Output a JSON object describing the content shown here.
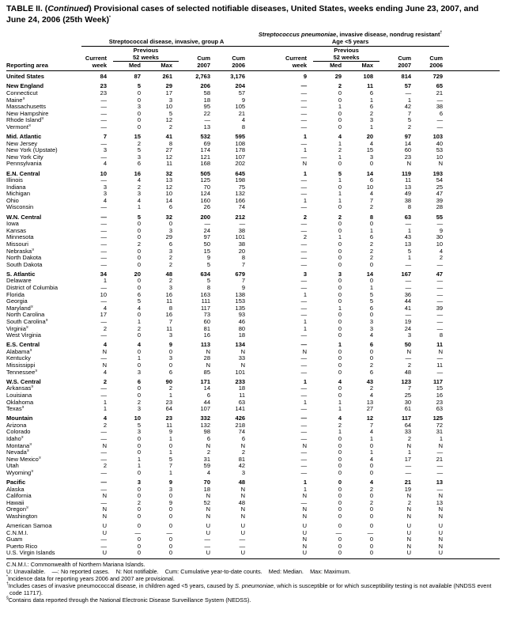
{
  "title": {
    "p1": "TABLE II. (",
    "p2": "Continued",
    "p3": ") Provisional cases of selected notifiable diseases, United States, weeks ending June 23, 2007, and June 24, 2006 (25th Week)",
    "star": "*"
  },
  "group_a": {
    "title": "Streptococcal disease, invasive, group A"
  },
  "group_b": {
    "title_italic": "Streptococcus pneumoniae",
    "title_rest": ", invasive disease, nondrug resistant",
    "dagger": "†",
    "subtitle": "Age <5 years"
  },
  "columns": {
    "reporting_area": "Reporting area",
    "current": "Current",
    "week": "week",
    "previous": "Previous",
    "weeks52": "52 weeks",
    "med": "Med",
    "max": "Max",
    "cum": "Cum",
    "y2007": "2007",
    "y2006": "2006"
  },
  "rows": [
    {
      "area": "United States",
      "bold": true,
      "v": [
        "84",
        "87",
        "261",
        "2,763",
        "3,176",
        "9",
        "29",
        "108",
        "814",
        "729"
      ]
    },
    {
      "area": "New England",
      "bold": true,
      "sect": true,
      "v": [
        "23",
        "5",
        "29",
        "206",
        "204",
        "—",
        "2",
        "11",
        "57",
        "65"
      ]
    },
    {
      "area": "Connecticut",
      "v": [
        "23",
        "0",
        "17",
        "58",
        "57",
        "—",
        "0",
        "6",
        "—",
        "21"
      ]
    },
    {
      "area": "Maine",
      "sup": "§",
      "v": [
        "—",
        "0",
        "3",
        "18",
        "9",
        "—",
        "0",
        "1",
        "1",
        "—"
      ]
    },
    {
      "area": "Massachusetts",
      "v": [
        "—",
        "3",
        "10",
        "95",
        "105",
        "—",
        "1",
        "6",
        "42",
        "38"
      ]
    },
    {
      "area": "New Hampshire",
      "v": [
        "—",
        "0",
        "5",
        "22",
        "21",
        "—",
        "0",
        "2",
        "7",
        "6"
      ]
    },
    {
      "area": "Rhode Island",
      "sup": "§",
      "v": [
        "—",
        "0",
        "12",
        "—",
        "4",
        "—",
        "0",
        "3",
        "5",
        "—"
      ]
    },
    {
      "area": "Vermont",
      "sup": "§",
      "v": [
        "—",
        "0",
        "2",
        "13",
        "8",
        "—",
        "0",
        "1",
        "2",
        "—"
      ]
    },
    {
      "area": "Mid. Atlantic",
      "bold": true,
      "sect": true,
      "v": [
        "7",
        "15",
        "41",
        "532",
        "595",
        "1",
        "4",
        "20",
        "97",
        "103"
      ]
    },
    {
      "area": "New Jersey",
      "v": [
        "—",
        "2",
        "8",
        "69",
        "108",
        "—",
        "1",
        "4",
        "14",
        "40"
      ]
    },
    {
      "area": "New York (Upstate)",
      "v": [
        "3",
        "5",
        "27",
        "174",
        "178",
        "1",
        "2",
        "15",
        "60",
        "53"
      ]
    },
    {
      "area": "New York City",
      "v": [
        "—",
        "3",
        "12",
        "121",
        "107",
        "—",
        "1",
        "3",
        "23",
        "10"
      ]
    },
    {
      "area": "Pennsylvania",
      "v": [
        "4",
        "6",
        "11",
        "168",
        "202",
        "N",
        "0",
        "0",
        "N",
        "N"
      ]
    },
    {
      "area": "E.N. Central",
      "bold": true,
      "sect": true,
      "v": [
        "10",
        "16",
        "32",
        "505",
        "645",
        "1",
        "5",
        "14",
        "119",
        "193"
      ]
    },
    {
      "area": "Illinois",
      "v": [
        "—",
        "4",
        "13",
        "125",
        "198",
        "—",
        "1",
        "6",
        "11",
        "54"
      ]
    },
    {
      "area": "Indiana",
      "v": [
        "3",
        "2",
        "12",
        "70",
        "75",
        "—",
        "0",
        "10",
        "13",
        "25"
      ]
    },
    {
      "area": "Michigan",
      "v": [
        "3",
        "3",
        "10",
        "124",
        "132",
        "—",
        "1",
        "4",
        "49",
        "47"
      ]
    },
    {
      "area": "Ohio",
      "v": [
        "4",
        "4",
        "14",
        "160",
        "166",
        "1",
        "1",
        "7",
        "38",
        "39"
      ]
    },
    {
      "area": "Wisconsin",
      "v": [
        "—",
        "1",
        "6",
        "26",
        "74",
        "—",
        "0",
        "2",
        "8",
        "28"
      ]
    },
    {
      "area": "W.N. Central",
      "bold": true,
      "sect": true,
      "v": [
        "—",
        "5",
        "32",
        "200",
        "212",
        "2",
        "2",
        "8",
        "63",
        "55"
      ]
    },
    {
      "area": "Iowa",
      "v": [
        "—",
        "0",
        "0",
        "—",
        "—",
        "—",
        "0",
        "0",
        "—",
        "—"
      ]
    },
    {
      "area": "Kansas",
      "v": [
        "—",
        "0",
        "3",
        "24",
        "38",
        "—",
        "0",
        "1",
        "1",
        "9"
      ]
    },
    {
      "area": "Minnesota",
      "v": [
        "—",
        "0",
        "29",
        "97",
        "101",
        "2",
        "1",
        "6",
        "43",
        "30"
      ]
    },
    {
      "area": "Missouri",
      "v": [
        "—",
        "2",
        "6",
        "50",
        "38",
        "—",
        "0",
        "2",
        "13",
        "10"
      ]
    },
    {
      "area": "Nebraska",
      "sup": "§",
      "v": [
        "—",
        "0",
        "3",
        "15",
        "20",
        "—",
        "0",
        "2",
        "5",
        "4"
      ]
    },
    {
      "area": "North Dakota",
      "v": [
        "—",
        "0",
        "2",
        "9",
        "8",
        "—",
        "0",
        "2",
        "1",
        "2"
      ]
    },
    {
      "area": "South Dakota",
      "v": [
        "—",
        "0",
        "2",
        "5",
        "7",
        "—",
        "0",
        "0",
        "—",
        "—"
      ]
    },
    {
      "area": "S. Atlantic",
      "bold": true,
      "sect": true,
      "v": [
        "34",
        "20",
        "48",
        "634",
        "679",
        "3",
        "3",
        "14",
        "167",
        "47"
      ]
    },
    {
      "area": "Delaware",
      "v": [
        "1",
        "0",
        "2",
        "5",
        "7",
        "—",
        "0",
        "0",
        "—",
        "—"
      ]
    },
    {
      "area": "District of Columbia",
      "v": [
        "—",
        "0",
        "3",
        "8",
        "9",
        "—",
        "0",
        "1",
        "—",
        "—"
      ]
    },
    {
      "area": "Florida",
      "v": [
        "10",
        "6",
        "16",
        "163",
        "138",
        "1",
        "0",
        "5",
        "36",
        "—"
      ]
    },
    {
      "area": "Georgia",
      "v": [
        "—",
        "5",
        "11",
        "111",
        "153",
        "—",
        "0",
        "5",
        "44",
        "—"
      ]
    },
    {
      "area": "Maryland",
      "sup": "§",
      "v": [
        "4",
        "4",
        "8",
        "117",
        "135",
        "—",
        "1",
        "6",
        "41",
        "39"
      ]
    },
    {
      "area": "North Carolina",
      "v": [
        "17",
        "0",
        "16",
        "73",
        "93",
        "—",
        "0",
        "0",
        "—",
        "—"
      ]
    },
    {
      "area": "South Carolina",
      "sup": "§",
      "v": [
        "—",
        "1",
        "7",
        "60",
        "46",
        "1",
        "0",
        "3",
        "19",
        "—"
      ]
    },
    {
      "area": "Virginia",
      "sup": "§",
      "v": [
        "2",
        "2",
        "11",
        "81",
        "80",
        "1",
        "0",
        "3",
        "24",
        "—"
      ]
    },
    {
      "area": "West Virginia",
      "v": [
        "—",
        "0",
        "3",
        "16",
        "18",
        "—",
        "0",
        "4",
        "3",
        "8"
      ]
    },
    {
      "area": "E.S. Central",
      "bold": true,
      "sect": true,
      "v": [
        "4",
        "4",
        "9",
        "113",
        "134",
        "—",
        "1",
        "6",
        "50",
        "11"
      ]
    },
    {
      "area": "Alabama",
      "sup": "§",
      "v": [
        "N",
        "0",
        "0",
        "N",
        "N",
        "N",
        "0",
        "0",
        "N",
        "N"
      ]
    },
    {
      "area": "Kentucky",
      "v": [
        "—",
        "1",
        "3",
        "28",
        "33",
        "—",
        "0",
        "0",
        "—",
        "—"
      ]
    },
    {
      "area": "Mississippi",
      "v": [
        "N",
        "0",
        "0",
        "N",
        "N",
        "—",
        "0",
        "2",
        "2",
        "11"
      ]
    },
    {
      "area": "Tennessee",
      "sup": "§",
      "v": [
        "4",
        "3",
        "6",
        "85",
        "101",
        "—",
        "0",
        "6",
        "48",
        "—"
      ]
    },
    {
      "area": "W.S. Central",
      "bold": true,
      "sect": true,
      "v": [
        "2",
        "6",
        "90",
        "171",
        "233",
        "1",
        "4",
        "43",
        "123",
        "117"
      ]
    },
    {
      "area": "Arkansas",
      "sup": "§",
      "v": [
        "—",
        "0",
        "2",
        "14",
        "18",
        "—",
        "0",
        "2",
        "7",
        "15"
      ]
    },
    {
      "area": "Louisiana",
      "v": [
        "—",
        "0",
        "1",
        "6",
        "11",
        "—",
        "0",
        "4",
        "25",
        "16"
      ]
    },
    {
      "area": "Oklahoma",
      "v": [
        "1",
        "2",
        "23",
        "44",
        "63",
        "1",
        "1",
        "13",
        "30",
        "23"
      ]
    },
    {
      "area": "Texas",
      "sup": "§",
      "v": [
        "1",
        "3",
        "64",
        "107",
        "141",
        "—",
        "1",
        "27",
        "61",
        "63"
      ]
    },
    {
      "area": "Mountain",
      "bold": true,
      "sect": true,
      "v": [
        "4",
        "10",
        "23",
        "332",
        "426",
        "—",
        "4",
        "12",
        "117",
        "125"
      ]
    },
    {
      "area": "Arizona",
      "v": [
        "2",
        "5",
        "11",
        "132",
        "218",
        "—",
        "2",
        "7",
        "64",
        "72"
      ]
    },
    {
      "area": "Colorado",
      "v": [
        "—",
        "3",
        "9",
        "98",
        "74",
        "—",
        "1",
        "4",
        "33",
        "31"
      ]
    },
    {
      "area": "Idaho",
      "sup": "§",
      "v": [
        "—",
        "0",
        "1",
        "6",
        "6",
        "—",
        "0",
        "1",
        "2",
        "1"
      ]
    },
    {
      "area": "Montana",
      "sup": "§",
      "v": [
        "N",
        "0",
        "0",
        "N",
        "N",
        "N",
        "0",
        "0",
        "N",
        "N"
      ]
    },
    {
      "area": "Nevada",
      "sup": "§",
      "v": [
        "—",
        "0",
        "1",
        "2",
        "2",
        "—",
        "0",
        "1",
        "1",
        "—"
      ]
    },
    {
      "area": "New Mexico",
      "sup": "§",
      "v": [
        "—",
        "1",
        "5",
        "31",
        "81",
        "—",
        "0",
        "4",
        "17",
        "21"
      ]
    },
    {
      "area": "Utah",
      "v": [
        "2",
        "1",
        "7",
        "59",
        "42",
        "—",
        "0",
        "0",
        "—",
        "—"
      ]
    },
    {
      "area": "Wyoming",
      "sup": "§",
      "v": [
        "—",
        "0",
        "1",
        "4",
        "3",
        "—",
        "0",
        "0",
        "—",
        "—"
      ]
    },
    {
      "area": "Pacific",
      "bold": true,
      "sect": true,
      "v": [
        "—",
        "3",
        "9",
        "70",
        "48",
        "1",
        "0",
        "4",
        "21",
        "13"
      ]
    },
    {
      "area": "Alaska",
      "v": [
        "—",
        "0",
        "3",
        "18",
        "N",
        "1",
        "0",
        "2",
        "19",
        "—"
      ]
    },
    {
      "area": "California",
      "v": [
        "N",
        "0",
        "0",
        "N",
        "N",
        "N",
        "0",
        "0",
        "N",
        "N"
      ]
    },
    {
      "area": "Hawaii",
      "v": [
        "—",
        "2",
        "9",
        "52",
        "48",
        "—",
        "0",
        "2",
        "2",
        "13"
      ]
    },
    {
      "area": "Oregon",
      "sup": "§",
      "v": [
        "N",
        "0",
        "0",
        "N",
        "N",
        "N",
        "0",
        "0",
        "N",
        "N"
      ]
    },
    {
      "area": "Washington",
      "v": [
        "N",
        "0",
        "0",
        "N",
        "N",
        "N",
        "0",
        "0",
        "N",
        "N"
      ]
    },
    {
      "area": "American Samoa",
      "sect": true,
      "v": [
        "U",
        "0",
        "0",
        "U",
        "U",
        "U",
        "0",
        "0",
        "U",
        "U"
      ]
    },
    {
      "area": "C.N.M.I.",
      "v": [
        "U",
        "—",
        "—",
        "U",
        "U",
        "U",
        "—",
        "—",
        "U",
        "U"
      ]
    },
    {
      "area": "Guam",
      "v": [
        "—",
        "0",
        "0",
        "—",
        "—",
        "N",
        "0",
        "0",
        "N",
        "N"
      ]
    },
    {
      "area": "Puerto Rico",
      "v": [
        "—",
        "0",
        "0",
        "—",
        "—",
        "N",
        "0",
        "0",
        "N",
        "N"
      ]
    },
    {
      "area": "U.S. Virgin Islands",
      "v": [
        "U",
        "0",
        "0",
        "U",
        "U",
        "U",
        "0",
        "0",
        "U",
        "U"
      ]
    }
  ],
  "footnotes": {
    "cnmi": "C.N.M.I.: Commonwealth of Northern Mariana Islands.",
    "abbrev": "U: Unavailable.    —: No reported cases.    N: Not notifiable.    Cum: Cumulative year-to-date counts.    Med: Median.    Max: Maximum.",
    "star_sym": "*",
    "star": "Incidence data for reporting years 2006 and 2007 are provisional.",
    "dagger_sym": "†",
    "dagger_pre": "Includes cases of invasive pneumococcal disease, in children aged <5 years, caused by ",
    "dagger_it": "S. pneumoniae",
    "dagger_post": ", which is susceptible or for which susceptibility testing is not available (NNDSS event code 11717).",
    "section_sym": "§",
    "section": "Contains data reported through the National Electronic Disease Surveillance System (NEDSS)."
  }
}
